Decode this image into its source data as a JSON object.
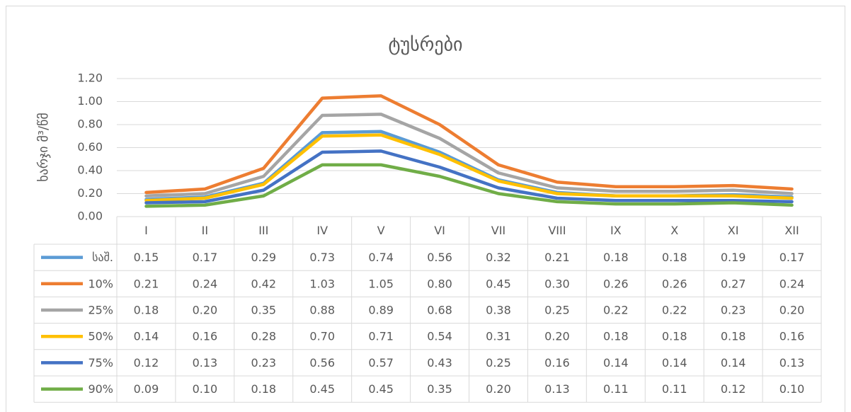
{
  "chart_data": {
    "type": "line",
    "title": "ტუსრები",
    "y_label": "ხარჯი მ³/წმ",
    "categories": [
      "I",
      "II",
      "III",
      "IV",
      "V",
      "VI",
      "VII",
      "VIII",
      "IX",
      "X",
      "XI",
      "XII"
    ],
    "ylim": [
      0,
      1.2
    ],
    "yticks": [
      {
        "value": 0,
        "label": "0.00"
      },
      {
        "value": 0.2,
        "label": "0.20"
      },
      {
        "value": 0.4,
        "label": "0.40"
      },
      {
        "value": 0.6,
        "label": "0.60"
      },
      {
        "value": 0.8,
        "label": "0.80"
      },
      {
        "value": 1,
        "label": "1.00"
      },
      {
        "value": 1.2,
        "label": "1.20"
      }
    ],
    "grid": true,
    "series": [
      {
        "name": "საშ.",
        "color": "#5b9bd5",
        "values": [
          0.15,
          0.17,
          0.29,
          0.73,
          0.74,
          0.56,
          0.32,
          0.21,
          0.18,
          0.18,
          0.19,
          0.17
        ],
        "value_labels": [
          "0.15",
          "0.17",
          "0.29",
          "0.73",
          "0.74",
          "0.56",
          "0.32",
          "0.21",
          "0.18",
          "0.18",
          "0.19",
          "0.17"
        ]
      },
      {
        "name": "10%",
        "color": "#ed7d31",
        "values": [
          0.21,
          0.24,
          0.42,
          1.03,
          1.05,
          0.8,
          0.45,
          0.3,
          0.26,
          0.26,
          0.27,
          0.24
        ],
        "value_labels": [
          "0.21",
          "0.24",
          "0.42",
          "1.03",
          "1.05",
          "0.80",
          "0.45",
          "0.30",
          "0.26",
          "0.26",
          "0.27",
          "0.24"
        ]
      },
      {
        "name": "25%",
        "color": "#a5a5a5",
        "values": [
          0.18,
          0.2,
          0.35,
          0.88,
          0.89,
          0.68,
          0.38,
          0.25,
          0.22,
          0.22,
          0.23,
          0.2
        ],
        "value_labels": [
          "0.18",
          "0.20",
          "0.35",
          "0.88",
          "0.89",
          "0.68",
          "0.38",
          "0.25",
          "0.22",
          "0.22",
          "0.23",
          "0.20"
        ]
      },
      {
        "name": "50%",
        "color": "#ffc000",
        "values": [
          0.14,
          0.16,
          0.28,
          0.7,
          0.71,
          0.54,
          0.31,
          0.2,
          0.18,
          0.18,
          0.18,
          0.16
        ],
        "value_labels": [
          "0.14",
          "0.16",
          "0.28",
          "0.70",
          "0.71",
          "0.54",
          "0.31",
          "0.20",
          "0.18",
          "0.18",
          "0.18",
          "0.16"
        ]
      },
      {
        "name": "75%",
        "color": "#4472c4",
        "values": [
          0.12,
          0.13,
          0.23,
          0.56,
          0.57,
          0.43,
          0.25,
          0.16,
          0.14,
          0.14,
          0.14,
          0.13
        ],
        "value_labels": [
          "0.12",
          "0.13",
          "0.23",
          "0.56",
          "0.57",
          "0.43",
          "0.25",
          "0.16",
          "0.14",
          "0.14",
          "0.14",
          "0.13"
        ]
      },
      {
        "name": "90%",
        "color": "#70ad47",
        "values": [
          0.09,
          0.1,
          0.18,
          0.45,
          0.45,
          0.35,
          0.2,
          0.13,
          0.11,
          0.11,
          0.12,
          0.1
        ],
        "value_labels": [
          "0.09",
          "0.10",
          "0.18",
          "0.45",
          "0.45",
          "0.35",
          "0.20",
          "0.13",
          "0.11",
          "0.11",
          "0.12",
          "0.10"
        ]
      }
    ]
  }
}
